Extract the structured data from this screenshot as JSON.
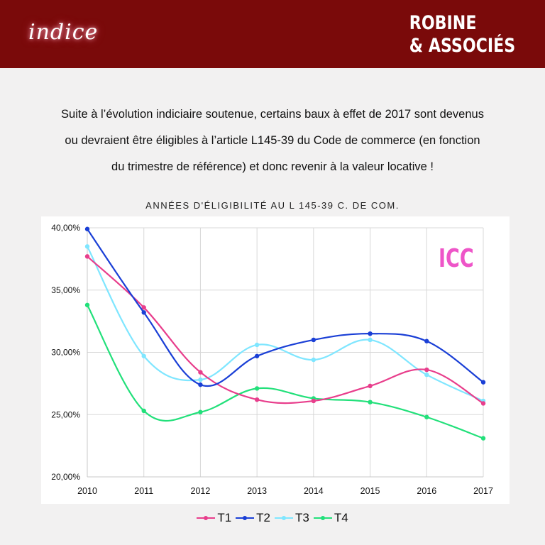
{
  "header": {
    "logo_text": "indice",
    "brand_line1": "ROBINE",
    "brand_line2": "& ASSOCIÉS"
  },
  "intro": {
    "line1": "Suite à l’évolution indiciaire soutenue, certains baux à effet de 2017 sont devenus",
    "line2": "ou devraient être éligibles à l’article L145-39 du Code de commerce (en fonction",
    "line3": "du trimestre de référence) et donc revenir à la valeur locative  !"
  },
  "colors": {
    "header_bg": "#7a0a0a",
    "T1": "#e83e8c",
    "T2": "#1a3fd6",
    "T3": "#7fe6ff",
    "T4": "#22e07a",
    "icc": "#ee55c8"
  },
  "chart_data": {
    "type": "line",
    "title": "ANNÉES D'ÉLIGIBILITÉ AU L 145-39 C. DE COM.",
    "annotation": "ICC",
    "x": [
      "2010",
      "2011",
      "2012",
      "2013",
      "2014",
      "2015",
      "2016",
      "2017"
    ],
    "y_ticks": [
      "20,00%",
      "25,00%",
      "30,00%",
      "35,00%",
      "40,00%"
    ],
    "ylim": [
      20,
      40
    ],
    "grid": true,
    "legend_position": "bottom",
    "series": [
      {
        "name": "T1",
        "values": [
          37.7,
          33.6,
          28.4,
          26.2,
          26.1,
          27.3,
          28.6,
          25.9
        ]
      },
      {
        "name": "T2",
        "values": [
          39.9,
          33.2,
          27.4,
          29.7,
          31.0,
          31.5,
          30.9,
          27.6
        ]
      },
      {
        "name": "T3",
        "values": [
          38.5,
          29.7,
          27.8,
          30.6,
          29.4,
          31.0,
          28.2,
          26.1
        ]
      },
      {
        "name": "T4",
        "values": [
          33.8,
          25.3,
          25.2,
          27.1,
          26.3,
          26.0,
          24.8,
          23.1
        ]
      }
    ]
  }
}
